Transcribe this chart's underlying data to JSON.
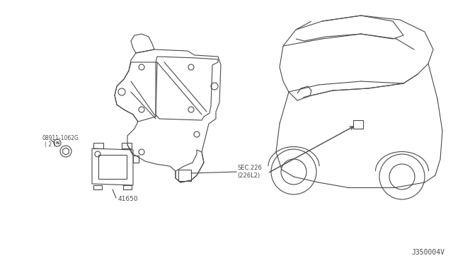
{
  "bg_color": "#ffffff",
  "line_color": "#4a4a4a",
  "diagram_id": "J350004V",
  "labels": {
    "part1_line1": "① 08911-1062G",
    "part1_line2": "( 2 )",
    "part2": "41650",
    "part3_line1": "SEC.226",
    "part3_line2": "(226L2)"
  },
  "fig_width": 6.4,
  "fig_height": 3.72,
  "dpi": 100
}
